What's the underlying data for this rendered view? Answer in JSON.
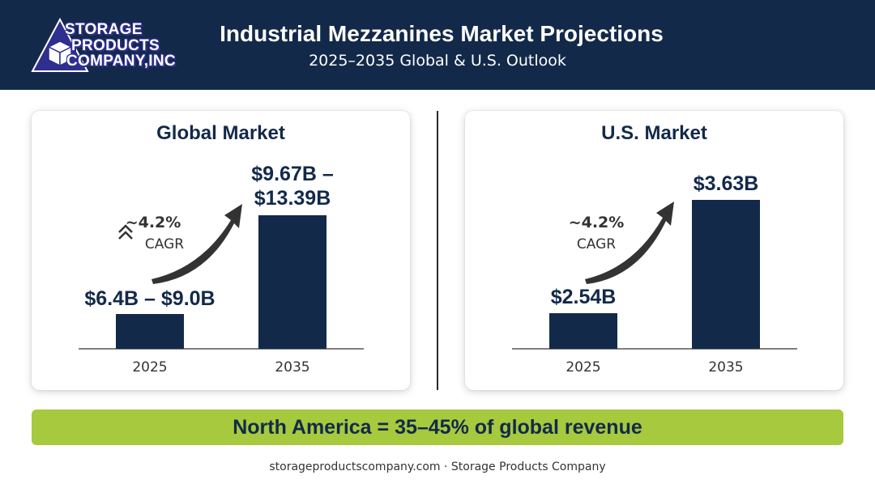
{
  "header": {
    "logo_lines": [
      "STORAGE",
      "PRODUCTS",
      "COMPANY,INC"
    ],
    "title": "Industrial Mezzanines Market Projections",
    "subtitle": "2025–2035 Global & U.S. Outlook"
  },
  "colors": {
    "navy": "#13294a",
    "banner_green": "#a6c93e",
    "logo_purple": "#2f2f8f",
    "arrow": "#333333"
  },
  "chart_data": [
    {
      "type": "bar",
      "title": "Global Market",
      "categories": [
        "2025",
        "2035"
      ],
      "values_low": [
        6.4,
        9.67
      ],
      "values_high": [
        9.0,
        13.39
      ],
      "value_labels": [
        "$6.4B – $9.0B",
        "$9.67B – $13.39B"
      ],
      "annotation": {
        "value": "~4.2%",
        "label": "CAGR",
        "icon": "double-chevron-up-icon",
        "arrow": "curved-up-arrow-icon"
      },
      "unit": "USD billions"
    },
    {
      "type": "bar",
      "title": "U.S. Market",
      "categories": [
        "2025",
        "2035"
      ],
      "values": [
        2.54,
        3.63
      ],
      "value_labels": [
        "$2.54B",
        "$3.63B"
      ],
      "annotation": {
        "value": "~4.2%",
        "label": "CAGR",
        "arrow": "curved-up-arrow-icon"
      },
      "unit": "USD billions"
    }
  ],
  "banner": {
    "text": "North America = 35–45% of global revenue"
  },
  "footer": {
    "text": "storageproductscompany.com · Storage Products Company"
  }
}
